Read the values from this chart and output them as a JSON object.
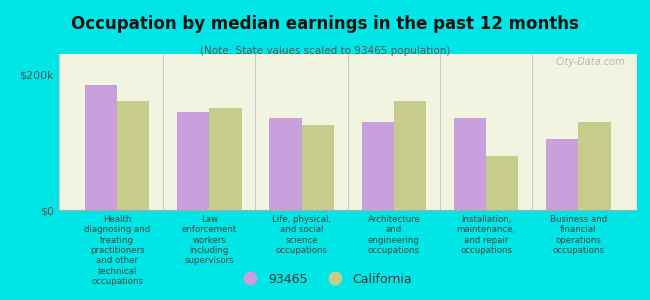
{
  "title": "Occupation by median earnings in the past 12 months",
  "subtitle": "(Note: State values scaled to 93465 population)",
  "background_color": "#00e5e5",
  "plot_bg_color": "#f0f4e0",
  "categories": [
    "Health\ndiagnosing and\ntreating\npractitioners\nand other\ntechnical\noccupations",
    "Law\nenforcement\nworkers\nincluding\nsupervisors",
    "Life, physical,\nand social\nscience\noccupations",
    "Architecture\nand\nengineering\noccupations",
    "Installation,\nmaintenance,\nand repair\noccupations",
    "Business and\nfinancial\noperations\noccupations"
  ],
  "values_93465": [
    185000,
    145000,
    135000,
    130000,
    135000,
    105000
  ],
  "values_california": [
    160000,
    150000,
    125000,
    160000,
    80000,
    130000
  ],
  "color_93465": "#c9a0dc",
  "color_california": "#c8cc8a",
  "legend_93465": "93465",
  "legend_california": "California",
  "yticks": [
    0,
    200000
  ],
  "ytick_labels": [
    "$0",
    "$200k"
  ],
  "ylim": [
    0,
    230000
  ],
  "watermark": "City-Data.com"
}
